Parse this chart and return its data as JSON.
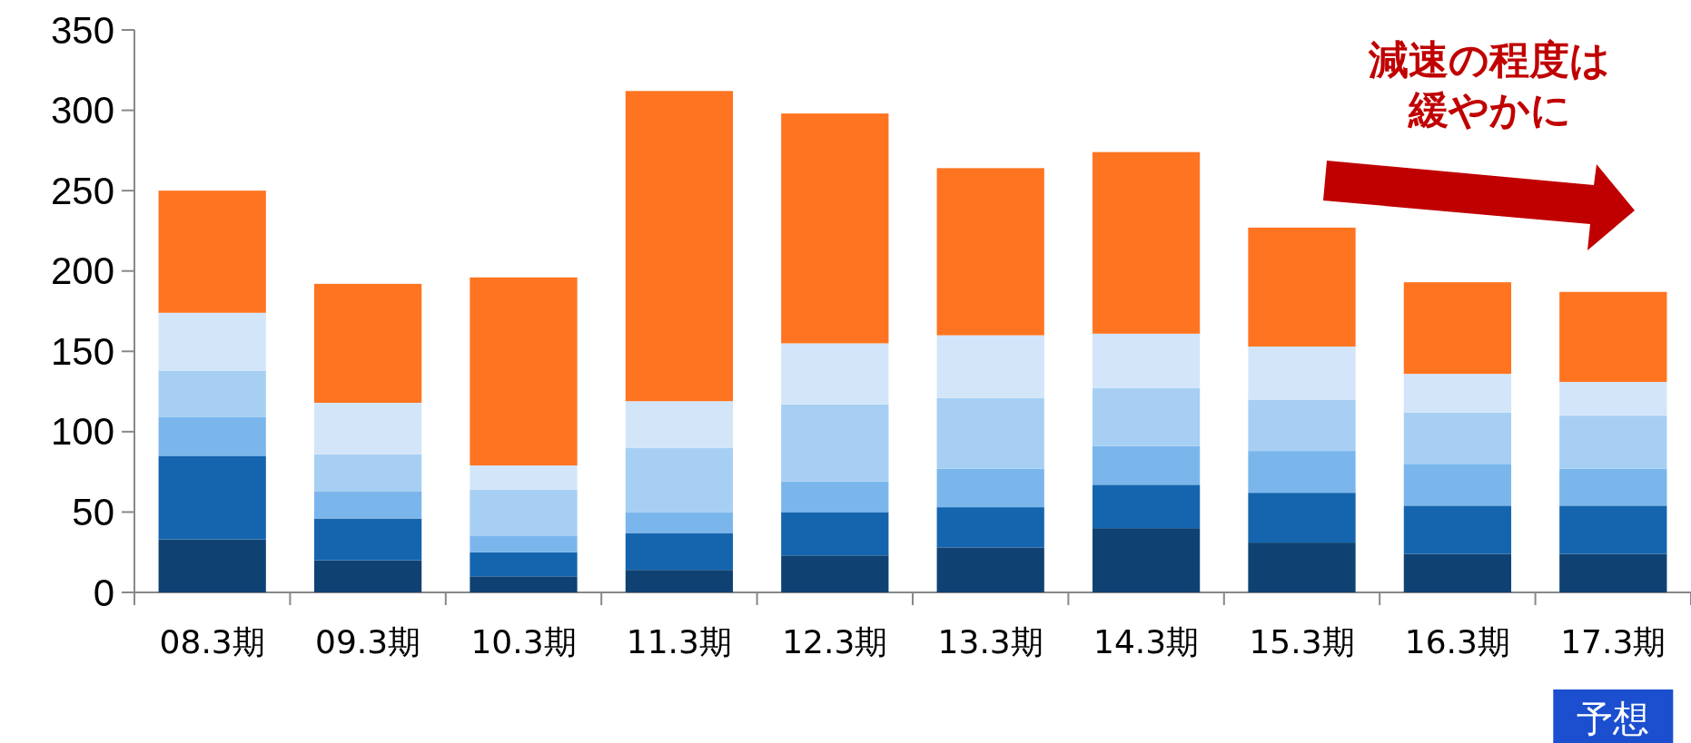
{
  "chart_data": {
    "type": "bar",
    "stacked": true,
    "categories": [
      "08.3期",
      "09.3期",
      "10.3期",
      "11.3期",
      "12.3期",
      "13.3期",
      "14.3期",
      "15.3期",
      "16.3期",
      "17.3期"
    ],
    "series": [
      {
        "color": "#0f4273",
        "values": [
          33,
          20,
          10,
          14,
          23,
          28,
          40,
          31,
          24,
          24
        ]
      },
      {
        "color": "#1565ae",
        "values": [
          52,
          26,
          15,
          23,
          27,
          25,
          27,
          31,
          30,
          30
        ]
      },
      {
        "color": "#7ab6ec",
        "values": [
          24,
          17,
          10,
          13,
          19,
          24,
          24,
          26,
          26,
          23
        ]
      },
      {
        "color": "#a6cff3",
        "values": [
          29,
          23,
          29,
          40,
          48,
          44,
          36,
          32,
          32,
          33
        ]
      },
      {
        "color": "#d3e6f9",
        "values": [
          36,
          32,
          15,
          29,
          38,
          39,
          34,
          33,
          24,
          21
        ]
      },
      {
        "color": "#ff7420",
        "values": [
          76,
          74,
          117,
          193,
          143,
          104,
          113,
          74,
          57,
          56
        ]
      }
    ],
    "ylim": [
      0,
      350
    ],
    "yticks": [
      0,
      50,
      100,
      150,
      200,
      250,
      300,
      350
    ],
    "grid": false,
    "annotations": [
      "減速の程度は緩やかに",
      "予想"
    ]
  }
}
